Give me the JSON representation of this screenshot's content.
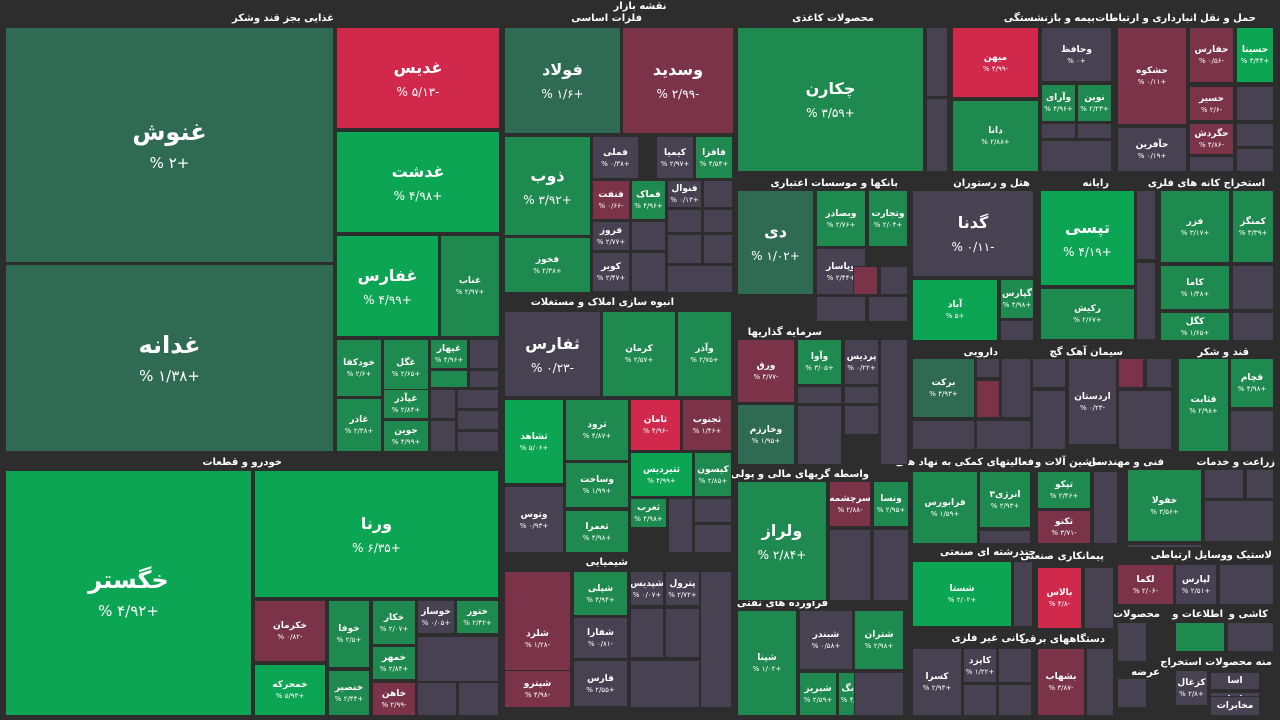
{
  "title": "نقشه بازار",
  "colors": {
    "strong_up": "#0ca553",
    "up": "#1f8a4f",
    "flat_up": "#2f6b52",
    "flat": "#474151",
    "down": "#7a3348",
    "strong_down": "#d0294b"
  },
  "chart_data": {
    "type": "treemap",
    "sectors": [
      "غذایی بجز قند وشکر",
      "فلزات اساسی",
      "محصولات کاغذی",
      "بیمه و بازنشستگی",
      "حمل و نقل انبارداری و ارتباطات",
      "بانکها و موسسات اعتباری",
      "هتل و رستوران",
      "رایانه",
      "استخراج کانه های فلزی",
      "انبوه سازی املاک و مستغلات",
      "سرمایه گذاریها",
      "دارویی",
      "سیمان آهک گچ",
      "قند و شکر",
      "خودرو و قطعات",
      "واسطه گریهای مالی و پولی",
      "فعالیتهای کمکی به نهاد های",
      "ماشین آلات و",
      "فنی و مهندسی",
      "زراعت و خدمات",
      "شیمیایی",
      "چندرشته ای صنعتی",
      "پیمانکاری صنعتی",
      "وسایل ارتباطی",
      "لاستیک و",
      "فرآورده های نفتی",
      "محصولات",
      "اطلاعات و",
      "کاشی و",
      "کانی غیر فلزی",
      "دستگاههای برقی",
      "منه محصولات استخراج",
      "عرضه"
    ],
    "tiles": [
      {
        "symbol": "غنوش",
        "change": "+۲ %"
      },
      {
        "symbol": "غدانه",
        "change": "+۱/۳۸ %"
      },
      {
        "symbol": "غدیس",
        "change": "-۵/۱۳ %"
      },
      {
        "symbol": "غدشت",
        "change": "+۴/۹۸ %"
      },
      {
        "symbol": "غفارس",
        "change": "+۴/۹۹ %"
      },
      {
        "symbol": "غناب",
        "change": "+۲/۹۷ %"
      },
      {
        "symbol": "خودکفا",
        "change": "+۲/۶ %"
      },
      {
        "symbol": "غگل",
        "change": "+۲/۶۵ %"
      },
      {
        "symbol": "غپهار",
        "change": "+۴/۹۶ %"
      },
      {
        "symbol": "غپآذر",
        "change": "+۲/۸۴ %"
      },
      {
        "symbol": "غاذر",
        "change": "+۲/۳۸ %"
      },
      {
        "symbol": "جوین",
        "change": "+۴/۹۹ %"
      },
      {
        "symbol": "فولاد",
        "change": "+۱/۶ %"
      },
      {
        "symbol": "وسدید",
        "change": "-۲/۹۹ %"
      },
      {
        "symbol": "ذوب",
        "change": "+۳/۹۲ %"
      },
      {
        "symbol": "فملی",
        "change": "+۰/۳۸ %"
      },
      {
        "symbol": "کیمیا",
        "change": "+۲/۹۷ %"
      },
      {
        "symbol": "فافزا",
        "change": "+۴/۵۴ %"
      },
      {
        "symbol": "فنفت",
        "change": "-۰/۶۶ %"
      },
      {
        "symbol": "فماک",
        "change": "+۴/۹۶ %"
      },
      {
        "symbol": "فنوال",
        "change": "+۰/۱۳ %"
      },
      {
        "symbol": "فروز",
        "change": "+۲/۷۷ %"
      },
      {
        "symbol": "فخوز",
        "change": "+۲/۳۸ %"
      },
      {
        "symbol": "کویر",
        "change": "+۲/۴۷ %"
      },
      {
        "symbol": "چکارن",
        "change": "+۳/۵۹ %"
      },
      {
        "symbol": "میهن",
        "change": "-۴/۹۹ %"
      },
      {
        "symbol": "وحافظ",
        "change": "+۰ %"
      },
      {
        "symbol": "وآرای",
        "change": "+۴/۹۶ %"
      },
      {
        "symbol": "نوین",
        "change": "+۲/۲۳ %"
      },
      {
        "symbol": "دانا",
        "change": "+۲/۸۸ %"
      },
      {
        "symbol": "حشکوه",
        "change": "+۰/۱۱ %"
      },
      {
        "symbol": "حفارس",
        "change": "-۰/۵۶ %"
      },
      {
        "symbol": "حسینا",
        "change": "+۴/۴۴ %"
      },
      {
        "symbol": "حسیر",
        "change": "-۲/۶ %"
      },
      {
        "symbol": "حگردش",
        "change": "-۴/۸۶ %"
      },
      {
        "symbol": "حآفرین",
        "change": "+۰/۱۹ %"
      },
      {
        "symbol": "دی",
        "change": "+۱/۰۲ %"
      },
      {
        "symbol": "وبصادر",
        "change": "+۲/۷۶ %"
      },
      {
        "symbol": "وتجارت",
        "change": "+۲/۰۴ %"
      },
      {
        "symbol": "وپاسار",
        "change": "+۲/۴۴ %"
      },
      {
        "symbol": "گدنا",
        "change": "-۰/۱۱ %"
      },
      {
        "symbol": "آباد",
        "change": "+۵ %"
      },
      {
        "symbol": "گپارس",
        "change": "+۴/۹۸ %"
      },
      {
        "symbol": "تپسی",
        "change": "+۴/۱۹ %"
      },
      {
        "symbol": "رکیش",
        "change": "+۲/۶۷ %"
      },
      {
        "symbol": "فزر",
        "change": "+۳/۱۷ %"
      },
      {
        "symbol": "کمنگز",
        "change": "+۳/۳۹ %"
      },
      {
        "symbol": "کاما",
        "change": "+۱/۴۸ %"
      },
      {
        "symbol": "کگل",
        "change": "+۱/۶۵ %"
      },
      {
        "symbol": "ثفارس",
        "change": "-۰/۲۳ %"
      },
      {
        "symbol": "کرمان",
        "change": "+۲/۵۷ %"
      },
      {
        "symbol": "وآذر",
        "change": "+۲/۷۵ %"
      },
      {
        "symbol": "ثشاهد",
        "change": "+۵/۰۶ %"
      },
      {
        "symbol": "ثرود",
        "change": "+۴/۸۷ %"
      },
      {
        "symbol": "ثامان",
        "change": "-۴/۹۶ %"
      },
      {
        "symbol": "ثجنوب",
        "change": "+۱/۴۶ %"
      },
      {
        "symbol": "وساخت",
        "change": "+۱/۹۹ %"
      },
      {
        "symbol": "ثتیردیس",
        "change": "+۴/۹۹ %"
      },
      {
        "symbol": "کیسون",
        "change": "+۲/۸۵ %"
      },
      {
        "symbol": "وتوس",
        "change": "+۰/۹۳ %"
      },
      {
        "symbol": "ثعمرا",
        "change": "+۴/۹۸ %"
      },
      {
        "symbol": "ثغرب",
        "change": "+۴/۹۸ %"
      },
      {
        "symbol": "ورق",
        "change": "-۴/۷۷ %"
      },
      {
        "symbol": "وآوا",
        "change": "+۳/۰۵ %"
      },
      {
        "symbol": "پردیس",
        "change": "+۰/۲۲ %"
      },
      {
        "symbol": "وخارزم",
        "change": "+۱/۹۵ %"
      },
      {
        "symbol": "برکت",
        "change": "+۴/۹۳ %"
      },
      {
        "symbol": "اردستان",
        "change": "-۰/۲۳ %"
      },
      {
        "symbol": "قثابت",
        "change": "+۲/۹۸ %"
      },
      {
        "symbol": "قچام",
        "change": "+۴/۹۸ %"
      },
      {
        "symbol": "خگستر",
        "change": "+۴/۹۲ %"
      },
      {
        "symbol": "ورنا",
        "change": "+۶/۳۵ %"
      },
      {
        "symbol": "خکرمان",
        "change": "-۰/۸۲ %"
      },
      {
        "symbol": "خوفا",
        "change": "+۲/۵ %"
      },
      {
        "symbol": "خکار",
        "change": "+۲/۰۷ %"
      },
      {
        "symbol": "خوساز",
        "change": "+۰/۰۵ %"
      },
      {
        "symbol": "ختور",
        "change": "+۲/۴۲ %"
      },
      {
        "symbol": "خمهر",
        "change": "+۲/۸۴ %"
      },
      {
        "symbol": "خمحرکه",
        "change": "+۵/۹۳ %"
      },
      {
        "symbol": "خنصیر",
        "change": "+۲/۴۴ %"
      },
      {
        "symbol": "خاهن",
        "change": "-۲/۹۹ %"
      },
      {
        "symbol": "ولراز",
        "change": "+۲/۸۴ %"
      },
      {
        "symbol": "سرچشمه",
        "change": "-۲/۸۸ %"
      },
      {
        "symbol": "ونسا",
        "change": "+۲/۹۵ %"
      },
      {
        "symbol": "فرابورس",
        "change": "+۱/۵۹ %"
      },
      {
        "symbol": "انرژی۳",
        "change": "+۲/۹۳ %"
      },
      {
        "symbol": "تپکو",
        "change": "+۲/۴۶ %"
      },
      {
        "symbol": "تکنو",
        "change": "-۳/۷۱ %"
      },
      {
        "symbol": "خفولا",
        "change": "+۳/۵۶ %"
      },
      {
        "symbol": "شلرد",
        "change": "-۱/۲۸ %"
      },
      {
        "symbol": "شپلی",
        "change": "+۴/۹۴ %"
      },
      {
        "symbol": "شپدیس",
        "change": "+۰/۰۷ %"
      },
      {
        "symbol": "پترول",
        "change": "+۲/۷۲ %"
      },
      {
        "symbol": "شفارا",
        "change": "-۰/۸۱ %"
      },
      {
        "symbol": "فارس",
        "change": "+۲/۵۵ %"
      },
      {
        "symbol": "شپترو",
        "change": "-۴/۹۸ %"
      },
      {
        "symbol": "شستا",
        "change": "+۲/۰۲ %"
      },
      {
        "symbol": "بالاس",
        "change": "-۴/۸ %"
      },
      {
        "symbol": "لکما",
        "change": "-۲/۰۶ %"
      },
      {
        "symbol": "لپارس",
        "change": "+۲/۵۱ %"
      },
      {
        "symbol": "شپنا",
        "change": "+۱/۰۲ %"
      },
      {
        "symbol": "شبندر",
        "change": "+۰/۵۸ %"
      },
      {
        "symbol": "شتران",
        "change": "+۲/۹۸ %"
      },
      {
        "symbol": "شبریز",
        "change": "+۲/۵۹ %"
      },
      {
        "symbol": "شرنگ",
        "change": "+۴/۹۴ %"
      },
      {
        "symbol": "کسرا",
        "change": "+۲/۹۳ %"
      },
      {
        "symbol": "کاپزد",
        "change": "+۱/۲۲ %"
      },
      {
        "symbol": "بشهاب",
        "change": "-۳/۸۷ %"
      },
      {
        "symbol": "کزغال",
        "change": "+۲/۸ %"
      },
      {
        "symbol": "اسا",
        "change": ""
      },
      {
        "symbol": "اسا",
        "change": ""
      },
      {
        "symbol": "مخابرات",
        "change": ""
      }
    ]
  }
}
